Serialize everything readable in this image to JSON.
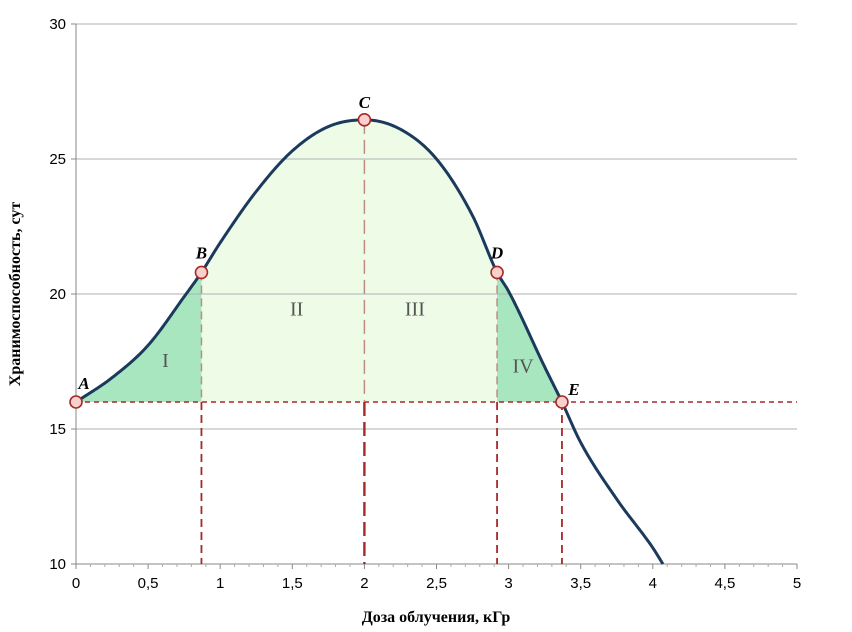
{
  "chart_data": {
    "type": "line",
    "xlabel": "Доза облучения, кГр",
    "ylabel": "Хранимоспособность, сут",
    "xlim": [
      0,
      5
    ],
    "ylim": [
      10,
      30
    ],
    "x_ticks": [
      0,
      0.5,
      1,
      1.5,
      2,
      2.5,
      3,
      3.5,
      4,
      4.5,
      5
    ],
    "x_tick_labels": [
      "0",
      "0,5",
      "1",
      "1,5",
      "2",
      "2,5",
      "3",
      "3,5",
      "4",
      "4,5",
      "5"
    ],
    "y_ticks": [
      10,
      15,
      20,
      25,
      30
    ],
    "y_tick_labels": [
      "10",
      "15",
      "20",
      "25",
      "30"
    ],
    "grid": "horizontal",
    "series": [
      {
        "x": [
          0,
          0.25,
          0.5,
          0.75,
          0.87,
          1.0,
          1.25,
          1.5,
          1.75,
          2.0,
          2.25,
          2.5,
          2.75,
          2.92,
          3.0,
          3.25,
          3.37,
          3.5,
          3.75,
          4.0,
          4.07
        ],
        "y": [
          16.0,
          16.9,
          18.1,
          19.9,
          20.8,
          21.9,
          23.8,
          25.3,
          26.2,
          26.45,
          26.1,
          25.0,
          22.9,
          20.8,
          20.1,
          17.3,
          16.0,
          14.5,
          12.4,
          10.6,
          10.0
        ]
      }
    ],
    "horizontal_reference": {
      "y": 16.0
    },
    "vertical_references": [
      0.87,
      2.0,
      2.92,
      3.37
    ],
    "points": [
      {
        "label": "A",
        "x": 0,
        "y": 16.0
      },
      {
        "label": "B",
        "x": 0.87,
        "y": 20.8
      },
      {
        "label": "C",
        "x": 2.0,
        "y": 26.45
      },
      {
        "label": "D",
        "x": 2.92,
        "y": 20.8
      },
      {
        "label": "E",
        "x": 3.37,
        "y": 16.0
      }
    ],
    "regions": [
      {
        "label": "I",
        "from_x": 0,
        "to_x": 0.87,
        "color": "#a8e6bf"
      },
      {
        "label": "II",
        "from_x": 0.87,
        "to_x": 2.0,
        "color": "#eefbe6"
      },
      {
        "label": "III",
        "from_x": 2.0,
        "to_x": 2.92,
        "color": "#eefbe6"
      },
      {
        "label": "IV",
        "from_x": 2.92,
        "to_x": 3.37,
        "color": "#a8e6bf"
      }
    ],
    "colors": {
      "curve": "#1b3a5c",
      "reference_line": "#a52a2a",
      "marker_fill": "#f9d0cc",
      "marker_stroke": "#a52a2a",
      "grid": "#b0b0b0"
    }
  }
}
